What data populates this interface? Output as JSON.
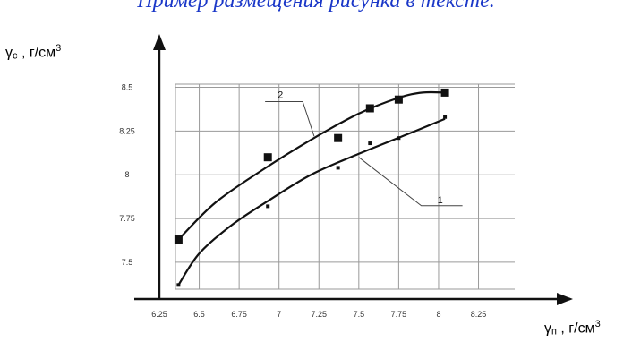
{
  "caption": "Пример размещения рисунка в тексте.",
  "chart_data": {
    "type": "line",
    "ylabel": {
      "main": "γ",
      "sub": "c",
      "tail": " , г/см",
      "sup": "3"
    },
    "xlabel": {
      "main": "γ",
      "sub": "п",
      "tail": " , г/см",
      "sup": "3"
    },
    "x_ticks": [
      6.25,
      6.5,
      6.75,
      7,
      7.25,
      7.5,
      7.75,
      8,
      8.25
    ],
    "x_tick_labels": [
      "6.25",
      "6.5",
      "6.75",
      "7",
      "7.25",
      "7.5",
      "7.75",
      "8",
      "8.25"
    ],
    "y_ticks": [
      7.5,
      7.75,
      8,
      8.25,
      8.5
    ],
    "y_tick_labels": [
      "7.5",
      "7.75",
      "8",
      "8.25",
      "8.5"
    ],
    "xlim": [
      6.25,
      8.55
    ],
    "ylim": [
      7.3,
      8.6
    ],
    "grid": true,
    "series": [
      {
        "name": "1",
        "marker": "dot",
        "points": [
          [
            6.37,
            7.37
          ],
          [
            6.93,
            7.82
          ],
          [
            7.37,
            8.04
          ],
          [
            7.57,
            8.18
          ],
          [
            7.75,
            8.21
          ],
          [
            8.04,
            8.33
          ]
        ],
        "curve": [
          [
            6.37,
            7.37
          ],
          [
            6.5,
            7.55
          ],
          [
            6.7,
            7.71
          ],
          [
            6.93,
            7.85
          ],
          [
            7.2,
            8.0
          ],
          [
            7.5,
            8.12
          ],
          [
            7.8,
            8.23
          ],
          [
            8.04,
            8.32
          ]
        ]
      },
      {
        "name": "2",
        "marker": "square",
        "points": [
          [
            6.37,
            7.63
          ],
          [
            6.93,
            8.1
          ],
          [
            7.37,
            8.21
          ],
          [
            7.57,
            8.38
          ],
          [
            7.75,
            8.43
          ],
          [
            8.04,
            8.47
          ]
        ],
        "curve": [
          [
            6.37,
            7.63
          ],
          [
            6.6,
            7.84
          ],
          [
            6.9,
            8.03
          ],
          [
            7.2,
            8.2
          ],
          [
            7.5,
            8.35
          ],
          [
            7.75,
            8.44
          ],
          [
            7.9,
            8.47
          ],
          [
            8.04,
            8.47
          ]
        ]
      }
    ],
    "callouts": [
      {
        "text": "1",
        "series": 0,
        "at": [
          7.5,
          8.1
        ],
        "label": [
          7.97,
          7.9
        ]
      },
      {
        "text": "2",
        "series": 1,
        "at": [
          7.22,
          8.22
        ],
        "label": [
          6.98,
          8.48
        ]
      }
    ]
  }
}
